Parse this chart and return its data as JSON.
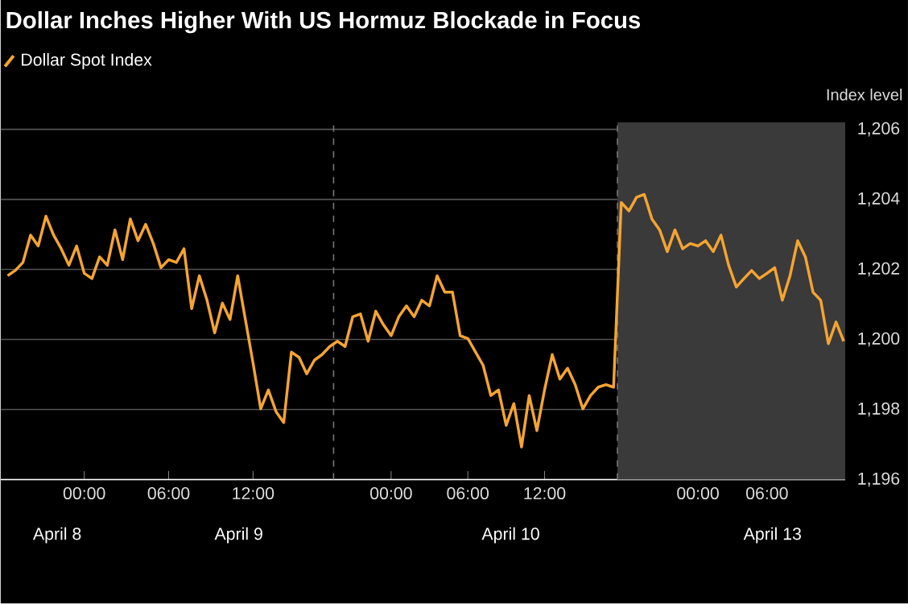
{
  "chart_data": {
    "type": "line",
    "title": "Dollar Inches Higher With US Hormuz Blockade in Focus",
    "ylabel": "Index level",
    "categories": [
      null,
      null,
      null,
      null,
      null,
      null,
      null,
      null,
      null,
      null,
      "00:00",
      null,
      null,
      null,
      null,
      null,
      null,
      null,
      null,
      null,
      null,
      "06:00",
      null,
      null,
      null,
      null,
      null,
      null,
      null,
      null,
      null,
      null,
      "12:00",
      null,
      null,
      null,
      null,
      null,
      null,
      null,
      null,
      null,
      null,
      null,
      null,
      null,
      null,
      null,
      null,
      null,
      "00:00",
      null,
      null,
      null,
      null,
      null,
      null,
      null,
      null,
      null,
      "06:00",
      null,
      null,
      null,
      null,
      null,
      null,
      null,
      null,
      null,
      "12:00",
      null,
      null,
      null,
      null,
      null,
      null,
      null,
      null,
      null,
      null,
      null,
      null,
      null,
      null,
      null,
      null,
      null,
      null,
      null,
      "00:00",
      null,
      null,
      null,
      null,
      null,
      null,
      null,
      null,
      "06:00",
      null,
      null,
      null,
      null,
      null,
      null,
      null,
      null,
      null,
      null
    ],
    "series": [
      {
        "name": "Dollar Spot Index",
        "color": "#f5a431",
        "values": [
          1201.82,
          1201.97,
          1202.2,
          1202.98,
          1202.67,
          1203.52,
          1202.98,
          1202.59,
          1202.12,
          1202.67,
          1201.89,
          1201.74,
          1202.36,
          1202.12,
          1203.13,
          1202.28,
          1203.44,
          1202.82,
          1203.29,
          1202.74,
          1202.05,
          1202.28,
          1202.2,
          1202.59,
          1200.88,
          1201.82,
          1201.12,
          1200.19,
          1201.04,
          1200.57,
          1201.82,
          1200.57,
          1199.33,
          1198.02,
          1198.56,
          1197.94,
          1197.63,
          1199.64,
          1199.49,
          1199.02,
          1199.41,
          1199.57,
          1199.8,
          1199.95,
          1199.8,
          1200.65,
          1200.73,
          1199.95,
          1200.81,
          1200.42,
          1200.11,
          1200.65,
          1200.96,
          1200.65,
          1201.12,
          1200.96,
          1201.82,
          1201.35,
          1201.35,
          1200.11,
          1200.03,
          1199.64,
          1199.26,
          1198.4,
          1198.56,
          1197.55,
          1198.17,
          1196.93,
          1198.4,
          1197.4,
          1198.56,
          1199.57,
          1198.87,
          1199.18,
          1198.71,
          1198.02,
          1198.4,
          1198.64,
          1198.71,
          1198.64,
          1203.91,
          1203.67,
          1204.06,
          1204.14,
          1203.44,
          1203.13,
          1202.51,
          1203.13,
          1202.59,
          1202.74,
          1202.67,
          1202.82,
          1202.51,
          1202.98,
          1202.12,
          1201.5,
          1201.74,
          1201.97,
          1201.74,
          1201.89,
          1202.05,
          1201.12,
          1201.82,
          1202.82,
          1202.36,
          1201.35,
          1201.12,
          1199.88,
          1200.5,
          1199.95
        ]
      }
    ],
    "ylim": [
      1196,
      1206.2
    ],
    "yticks": [
      {
        "value": 1196,
        "label": "1,196"
      },
      {
        "value": 1198,
        "label": "1,198"
      },
      {
        "value": 1200,
        "label": "1,200"
      },
      {
        "value": 1202,
        "label": "1,202"
      },
      {
        "value": 1204,
        "label": "1,204"
      },
      {
        "value": 1206,
        "label": "1,206"
      }
    ],
    "grid": "y",
    "legend": "top left",
    "marker": "none",
    "line_style": "solid",
    "annotations": [
      "April 8",
      "April 9",
      "April 10",
      "April 13"
    ]
  }
}
